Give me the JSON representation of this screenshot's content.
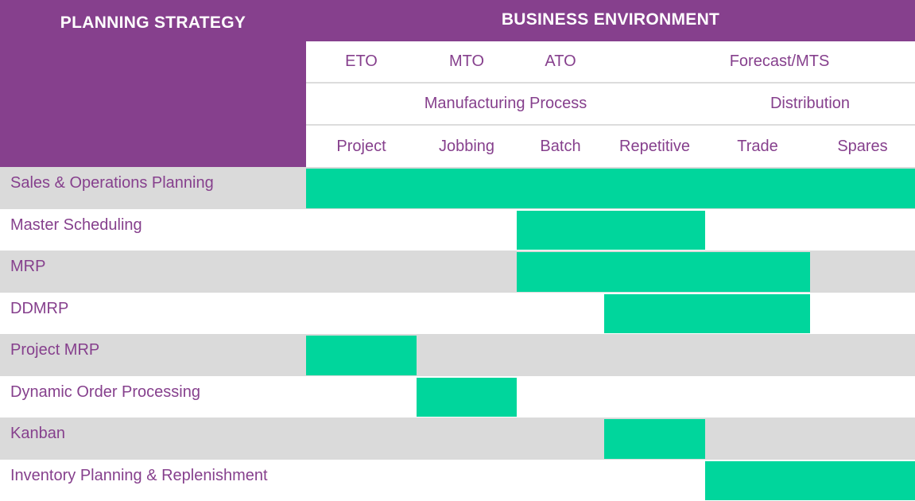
{
  "header": {
    "strategy_title": "PLANNING STRATEGY",
    "environment_title": "BUSINESS ENVIRONMENT"
  },
  "environment_types": [
    "ETO",
    "MTO",
    "ATO",
    "Forecast/MTS"
  ],
  "process_groups": [
    "Manufacturing Process",
    "Distribution"
  ],
  "processes": [
    "Project",
    "Jobbing",
    "Batch",
    "Repetitive",
    "Trade",
    "Spares"
  ],
  "strategies": [
    {
      "label": "Sales & Operations Planning",
      "covers": [
        "Project",
        "Jobbing",
        "Batch",
        "Repetitive",
        "Trade",
        "Spares"
      ]
    },
    {
      "label": "Master Scheduling",
      "covers": [
        "Batch",
        "Repetitive"
      ]
    },
    {
      "label": "MRP",
      "covers": [
        "Batch",
        "Repetitive",
        "Trade"
      ]
    },
    {
      "label": "DDMRP",
      "covers": [
        "Repetitive",
        "Trade"
      ]
    },
    {
      "label": "Project MRP",
      "covers": [
        "Project"
      ]
    },
    {
      "label": "Dynamic Order Processing",
      "covers": [
        "Jobbing"
      ]
    },
    {
      "label": "Kanban",
      "covers": [
        "Repetitive"
      ]
    },
    {
      "label": "Inventory  Planning & Replenishment",
      "covers": [
        "Trade",
        "Spares"
      ]
    }
  ],
  "colors": {
    "header": "#86408d",
    "text": "#86408d",
    "bar": "#00d69c",
    "shaded_row": "#dadada"
  }
}
